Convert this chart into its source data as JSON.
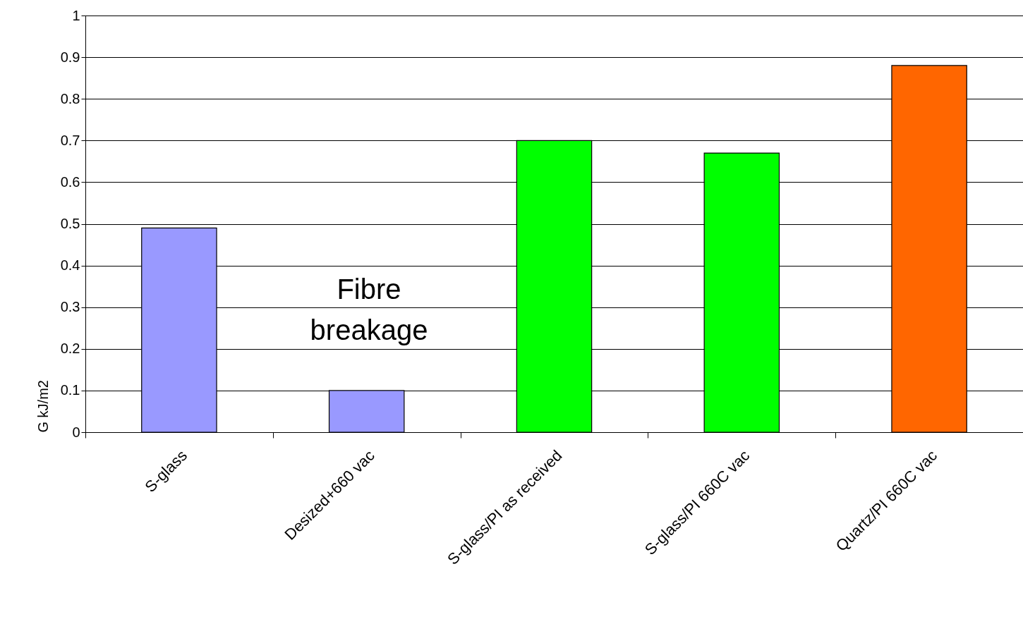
{
  "chart_data": {
    "type": "bar",
    "ylabel": "G kJ/m2",
    "categories": [
      "S-glass",
      "Desized+660 vac",
      "S-glass/PI as received",
      "S-glass/PI 660C vac",
      "Quartz/PI 660C vac"
    ],
    "values": [
      0.49,
      0.1,
      0.7,
      0.67,
      0.88
    ],
    "colors": [
      "#9999ff",
      "#9999ff",
      "#00ff00",
      "#00ff00",
      "#ff6600"
    ],
    "ylim": [
      0,
      1
    ],
    "yticks": [
      0,
      0.1,
      0.2,
      0.3,
      0.4,
      0.5,
      0.6,
      0.7,
      0.8,
      0.9,
      1
    ],
    "grid": "y",
    "annotations": [
      "Fibre breakage"
    ]
  }
}
